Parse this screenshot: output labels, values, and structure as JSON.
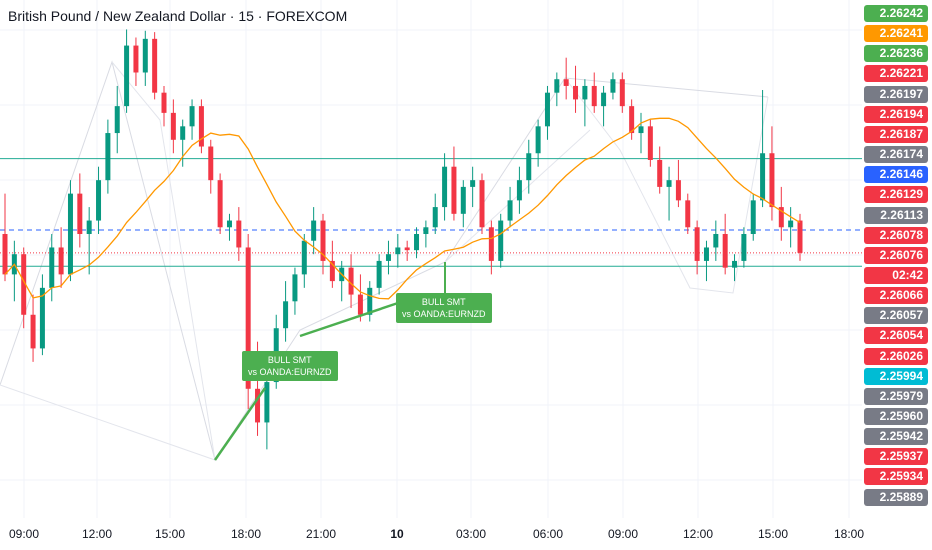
{
  "header": {
    "title": "British Pound / New Zealand Dollar · 15 · FOREXCOM"
  },
  "chart_data": {
    "type": "candlestick",
    "symbol": "British Pound / New Zealand Dollar",
    "interval": "15",
    "exchange": "FOREXCOM",
    "ylim": [
      2.25879,
      2.26249
    ],
    "x_ticks": [
      {
        "label": "09:00",
        "bold": false
      },
      {
        "label": "12:00",
        "bold": false
      },
      {
        "label": "15:00",
        "bold": false
      },
      {
        "label": "18:00",
        "bold": false
      },
      {
        "label": "21:00",
        "bold": false
      },
      {
        "label": "10",
        "bold": true
      },
      {
        "label": "03:00",
        "bold": false
      },
      {
        "label": "06:00",
        "bold": false
      },
      {
        "label": "09:00",
        "bold": false
      },
      {
        "label": "12:00",
        "bold": false
      },
      {
        "label": "15:00",
        "bold": false
      },
      {
        "label": "18:00",
        "bold": false
      }
    ],
    "price_labels": [
      {
        "value": "2.26242",
        "color": "#4caf50"
      },
      {
        "value": "2.26241",
        "color": "#ff9800"
      },
      {
        "value": "2.26236",
        "color": "#4caf50"
      },
      {
        "value": "2.26221",
        "color": "#f23645"
      },
      {
        "value": "2.26197",
        "color": "#787b86"
      },
      {
        "value": "2.26194",
        "color": "#f23645"
      },
      {
        "value": "2.26187",
        "color": "#f23645"
      },
      {
        "value": "2.26174",
        "color": "#787b86"
      },
      {
        "value": "2.26146",
        "color": "#2962ff"
      },
      {
        "value": "2.26129",
        "color": "#f23645"
      },
      {
        "value": "2.26113",
        "color": "#787b86"
      },
      {
        "value": "2.26078",
        "color": "#f23645"
      },
      {
        "value": "2.26076",
        "color": "#f23645"
      },
      {
        "value": "02:42",
        "color": "#f23645"
      },
      {
        "value": "2.26066",
        "color": "#f23645"
      },
      {
        "value": "2.26057",
        "color": "#787b86"
      },
      {
        "value": "2.26054",
        "color": "#f23645"
      },
      {
        "value": "2.26026",
        "color": "#f23645"
      },
      {
        "value": "2.25994",
        "color": "#00bcd4"
      },
      {
        "value": "2.25979",
        "color": "#787b86"
      },
      {
        "value": "2.25960",
        "color": "#787b86"
      },
      {
        "value": "2.25942",
        "color": "#787b86"
      },
      {
        "value": "2.25937",
        "color": "#f23645"
      },
      {
        "value": "2.25934",
        "color": "#f23645"
      },
      {
        "value": "2.25889",
        "color": "#787b86"
      }
    ],
    "annotations": [
      {
        "line1": "BULL SMT",
        "line2": "vs OANDA:EURNZD"
      },
      {
        "line1": "BULL SMT",
        "line2": "vs OANDA:EURNZD"
      }
    ],
    "horizontal_levels": {
      "teal_upper": 2.26146,
      "teal_lower": 2.26066,
      "blue_dashed": 2.26093,
      "red_dotted_current": 2.26076
    },
    "moving_average_color": "#ff9800",
    "candles": [
      [
        2.2609,
        2.2612,
        2.26055,
        2.2606
      ],
      [
        2.2606,
        2.26085,
        2.2604,
        2.26075
      ],
      [
        2.26075,
        2.2608,
        2.2602,
        2.2603
      ],
      [
        2.2603,
        2.26045,
        2.25995,
        2.26005
      ],
      [
        2.26005,
        2.2606,
        2.26,
        2.2605
      ],
      [
        2.2605,
        2.2609,
        2.2604,
        2.2608
      ],
      [
        2.2608,
        2.26095,
        2.2605,
        2.2606
      ],
      [
        2.2606,
        2.2613,
        2.26055,
        2.2612
      ],
      [
        2.2612,
        2.26135,
        2.2608,
        2.2609
      ],
      [
        2.2609,
        2.2611,
        2.2606,
        2.261
      ],
      [
        2.261,
        2.2614,
        2.2609,
        2.2613
      ],
      [
        2.2613,
        2.26175,
        2.2612,
        2.26165
      ],
      [
        2.26165,
        2.262,
        2.2615,
        2.26185
      ],
      [
        2.26185,
        2.26242,
        2.2618,
        2.2623
      ],
      [
        2.2623,
        2.26236,
        2.262,
        2.2621
      ],
      [
        2.2621,
        2.26241,
        2.262,
        2.26235
      ],
      [
        2.26235,
        2.2624,
        2.2619,
        2.26195
      ],
      [
        2.26195,
        2.262,
        2.2617,
        2.2618
      ],
      [
        2.2618,
        2.2619,
        2.2615,
        2.2616
      ],
      [
        2.2616,
        2.26175,
        2.2614,
        2.2617
      ],
      [
        2.2617,
        2.2619,
        2.2616,
        2.26185
      ],
      [
        2.26185,
        2.2619,
        2.2615,
        2.26155
      ],
      [
        2.26155,
        2.2616,
        2.2612,
        2.2613
      ],
      [
        2.2613,
        2.26135,
        2.2609,
        2.26095
      ],
      [
        2.26095,
        2.26105,
        2.26085,
        2.261
      ],
      [
        2.261,
        2.2611,
        2.2607,
        2.2608
      ],
      [
        2.2608,
        2.2609,
        2.2596,
        2.25975
      ],
      [
        2.25975,
        2.2601,
        2.2594,
        2.2595
      ],
      [
        2.2595,
        2.2599,
        2.2593,
        2.2598
      ],
      [
        2.2598,
        2.2603,
        2.25975,
        2.2602
      ],
      [
        2.2602,
        2.26055,
        2.2601,
        2.2604
      ],
      [
        2.2604,
        2.26065,
        2.2603,
        2.2606
      ],
      [
        2.2606,
        2.2609,
        2.2605,
        2.26085
      ],
      [
        2.26085,
        2.2611,
        2.26075,
        2.261
      ],
      [
        2.261,
        2.26105,
        2.2606,
        2.2607
      ],
      [
        2.2607,
        2.26085,
        2.2605,
        2.26055
      ],
      [
        2.26055,
        2.2607,
        2.2604,
        2.26065
      ],
      [
        2.26065,
        2.26075,
        2.26035,
        2.26045
      ],
      [
        2.26045,
        2.2606,
        2.26025,
        2.2603
      ],
      [
        2.2603,
        2.26055,
        2.26025,
        2.2605
      ],
      [
        2.2605,
        2.26075,
        2.26045,
        2.2607
      ],
      [
        2.2607,
        2.26085,
        2.2606,
        2.26075
      ],
      [
        2.26075,
        2.2609,
        2.26065,
        2.2608
      ],
      [
        2.2608,
        2.26085,
        2.2607,
        2.26078
      ],
      [
        2.26078,
        2.26095,
        2.26072,
        2.2609
      ],
      [
        2.2609,
        2.261,
        2.2608,
        2.26095
      ],
      [
        2.26095,
        2.2612,
        2.2609,
        2.2611
      ],
      [
        2.2611,
        2.2615,
        2.261,
        2.2614
      ],
      [
        2.2614,
        2.26155,
        2.261,
        2.26105
      ],
      [
        2.26105,
        2.2613,
        2.26095,
        2.26125
      ],
      [
        2.26125,
        2.2614,
        2.2611,
        2.2613
      ],
      [
        2.2613,
        2.26135,
        2.2609,
        2.26095
      ],
      [
        2.26095,
        2.261,
        2.2606,
        2.2607
      ],
      [
        2.2607,
        2.26105,
        2.26065,
        2.261
      ],
      [
        2.261,
        2.26125,
        2.26095,
        2.26115
      ],
      [
        2.26115,
        2.2614,
        2.26105,
        2.2613
      ],
      [
        2.2613,
        2.2616,
        2.2612,
        2.2615
      ],
      [
        2.2615,
        2.26175,
        2.2614,
        2.2617
      ],
      [
        2.2617,
        2.262,
        2.2616,
        2.26195
      ],
      [
        2.26195,
        2.2621,
        2.26185,
        2.26205
      ],
      [
        2.26205,
        2.26221,
        2.2619,
        2.262
      ],
      [
        2.262,
        2.26215,
        2.2618,
        2.2619
      ],
      [
        2.2619,
        2.26205,
        2.2617,
        2.262
      ],
      [
        2.262,
        2.2621,
        2.2618,
        2.26185
      ],
      [
        2.26185,
        2.262,
        2.2617,
        2.26195
      ],
      [
        2.26195,
        2.2621,
        2.2619,
        2.26205
      ],
      [
        2.26205,
        2.2621,
        2.2618,
        2.26185
      ],
      [
        2.26185,
        2.2619,
        2.2616,
        2.26165
      ],
      [
        2.26165,
        2.2618,
        2.2615,
        2.2617
      ],
      [
        2.2617,
        2.26175,
        2.2614,
        2.26145
      ],
      [
        2.26145,
        2.26155,
        2.2612,
        2.26125
      ],
      [
        2.26125,
        2.2614,
        2.261,
        2.2613
      ],
      [
        2.2613,
        2.26145,
        2.2611,
        2.26115
      ],
      [
        2.26115,
        2.2612,
        2.2609,
        2.26095
      ],
      [
        2.26095,
        2.261,
        2.2606,
        2.2607
      ],
      [
        2.2607,
        2.26085,
        2.26055,
        2.2608
      ],
      [
        2.2608,
        2.261,
        2.2607,
        2.2609
      ],
      [
        2.2609,
        2.26105,
        2.2606,
        2.26065
      ],
      [
        2.26065,
        2.26075,
        2.26055,
        2.2607
      ],
      [
        2.2607,
        2.26095,
        2.26065,
        2.2609
      ],
      [
        2.2609,
        2.2612,
        2.26085,
        2.26115
      ],
      [
        2.26115,
        2.26197,
        2.2611,
        2.2615
      ],
      [
        2.2615,
        2.2617,
        2.261,
        2.2611
      ],
      [
        2.2611,
        2.26125,
        2.26085,
        2.26095
      ],
      [
        2.26095,
        2.2611,
        2.2608,
        2.261
      ],
      [
        2.261,
        2.26105,
        2.2607,
        2.26076
      ]
    ]
  }
}
